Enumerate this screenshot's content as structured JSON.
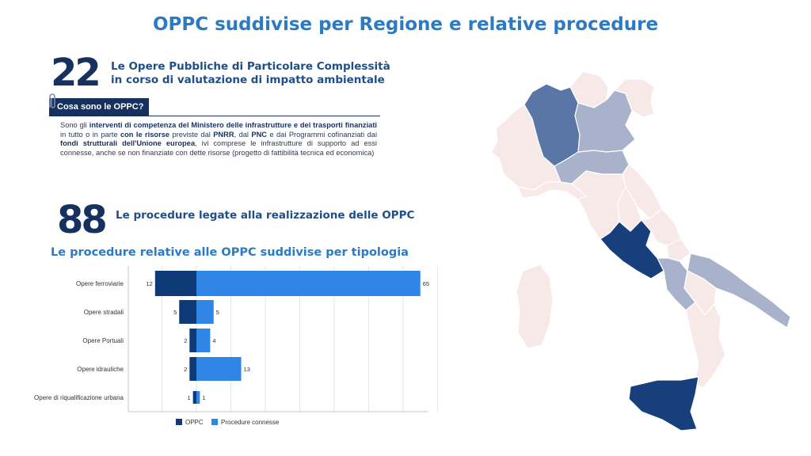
{
  "page": {
    "title": "OPPC suddivise per Regione e relative procedure"
  },
  "stat_oppc": {
    "number": "22",
    "text_line1": "Le Opere Pubbliche di Particolare Complessità",
    "text_line2": "in corso di valutazione di impatto ambientale"
  },
  "definition": {
    "label": "Cosa sono le OPPC?",
    "segments": [
      {
        "t": "Sono gli ",
        "b": false
      },
      {
        "t": "interventi di competenza del Ministero delle infrastrutture e dei trasporti finanziati",
        "b": true
      },
      {
        "t": " in tutto o in parte ",
        "b": false
      },
      {
        "t": "con le risorse",
        "b": true
      },
      {
        "t": " previste dal ",
        "b": false
      },
      {
        "t": "PNRR",
        "b": true
      },
      {
        "t": ", dal ",
        "b": false
      },
      {
        "t": "PNC",
        "b": true
      },
      {
        "t": " e dai Programmi cofinanziati dai ",
        "b": false
      },
      {
        "t": "fondi strutturali dell'Unione europea",
        "b": true
      },
      {
        "t": ", ivi comprese le infrastrutture di supporto ad essi connesse, anche se non finanziate con dette risorse (progetto di fattibilità tecnica ed economica)",
        "b": false
      }
    ]
  },
  "stat_procedures": {
    "number": "88",
    "text": "Le procedure  legate alla realizzazione delle OPPC"
  },
  "chart_title": "Le procedure relative alle OPPC suddivise per tipologia",
  "chart_data": {
    "type": "bar",
    "orientation": "horizontal",
    "layout": "diverging",
    "categories": [
      "Opere ferroviarie",
      "Opere stradali",
      "Opere Portuali",
      "Opere idrauliche",
      "Opere di riqualificazione urbana"
    ],
    "series": [
      {
        "name": "OPPC",
        "values": [
          12,
          5,
          2,
          2,
          1
        ],
        "color": "#0f3a78"
      },
      {
        "name": "Procedure connesse",
        "values": [
          65,
          5,
          4,
          13,
          1
        ],
        "color": "#2f86e6"
      }
    ],
    "grid": true,
    "legend_position": "bottom"
  },
  "map_colors": {
    "outline": "#8f9cb5",
    "shade_dark": "#163f7c",
    "shade_mid": "#5a76a6",
    "shade_light": "#a8b2cb",
    "shade_pale": "#f8e9e9"
  }
}
